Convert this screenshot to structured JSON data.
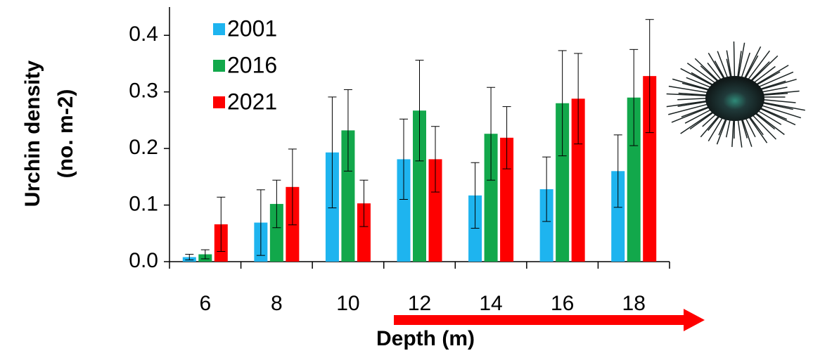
{
  "chart_data": {
    "type": "bar",
    "y_label_lines": [
      "Urchin density",
      "(no. m-2)"
    ],
    "x_label": "Depth (m)",
    "categories": [
      "6",
      "8",
      "10",
      "12",
      "14",
      "16",
      "18"
    ],
    "series": [
      {
        "name": "2001",
        "color": "#1eb4ef",
        "values": [
          0.008,
          0.069,
          0.193,
          0.181,
          0.117,
          0.128,
          0.16
        ],
        "errors": [
          0.005,
          0.058,
          0.098,
          0.071,
          0.058,
          0.057,
          0.064
        ]
      },
      {
        "name": "2016",
        "color": "#12a84b",
        "values": [
          0.013,
          0.102,
          0.232,
          0.267,
          0.226,
          0.28,
          0.29
        ],
        "errors": [
          0.008,
          0.042,
          0.072,
          0.089,
          0.082,
          0.093,
          0.085
        ]
      },
      {
        "name": "2021",
        "color": "#fe0000",
        "values": [
          0.066,
          0.132,
          0.103,
          0.181,
          0.219,
          0.288,
          0.328
        ],
        "errors": [
          0.048,
          0.067,
          0.041,
          0.058,
          0.055,
          0.08,
          0.1
        ]
      }
    ],
    "ylim": [
      0,
      0.45
    ],
    "yticks": [
      {
        "value": 0,
        "label": "0.0"
      },
      0.1,
      0.2,
      0.3,
      0.4
    ],
    "grid": false,
    "legend": "upper left"
  }
}
